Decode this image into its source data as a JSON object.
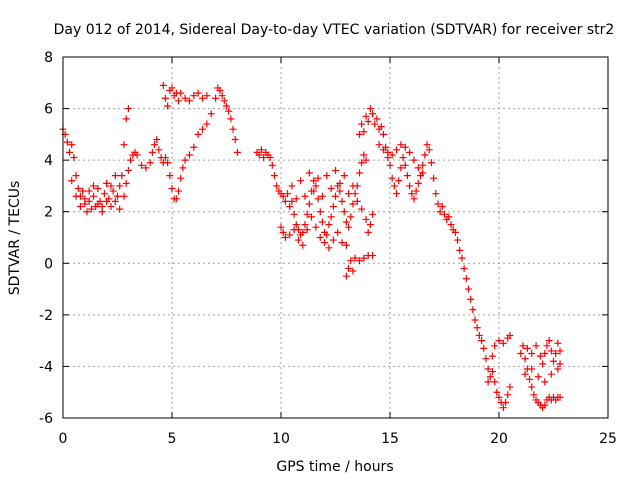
{
  "chart_data": {
    "type": "scatter",
    "title": "Day 012 of 2014, Sidereal Day-to-day VTEC variation (SDTVAR) for receiver str2",
    "xlabel": "GPS time / hours",
    "ylabel": "SDTVAR / TECUs",
    "xlim": [
      0,
      25
    ],
    "ylim": [
      -6,
      8
    ],
    "xticks": [
      0,
      5,
      10,
      15,
      20,
      25
    ],
    "yticks": [
      -6,
      -4,
      -2,
      0,
      2,
      4,
      6,
      8
    ],
    "grid": true,
    "marker": "plus",
    "color": "#ff0000",
    "series": [
      {
        "name": "str2",
        "points": [
          [
            0.0,
            5.2
          ],
          [
            0.1,
            5.0
          ],
          [
            0.2,
            4.7
          ],
          [
            0.3,
            4.3
          ],
          [
            0.4,
            4.6
          ],
          [
            0.5,
            4.1
          ],
          [
            0.6,
            3.4
          ],
          [
            0.7,
            2.9
          ],
          [
            0.8,
            2.6
          ],
          [
            0.9,
            2.8
          ],
          [
            1.0,
            2.3
          ],
          [
            1.1,
            2.0
          ],
          [
            1.2,
            2.4
          ],
          [
            1.3,
            2.1
          ],
          [
            1.4,
            2.6
          ],
          [
            1.5,
            2.2
          ],
          [
            1.6,
            2.9
          ],
          [
            1.7,
            2.4
          ],
          [
            1.8,
            2.2
          ],
          [
            1.9,
            2.7
          ],
          [
            2.0,
            3.1
          ],
          [
            2.1,
            2.5
          ],
          [
            2.2,
            2.2
          ],
          [
            2.3,
            2.8
          ],
          [
            2.4,
            3.4
          ],
          [
            2.5,
            2.6
          ],
          [
            2.6,
            2.1
          ],
          [
            2.7,
            3.4
          ],
          [
            2.8,
            4.6
          ],
          [
            2.9,
            5.6
          ],
          [
            3.0,
            6.0
          ],
          [
            0.4,
            3.2
          ],
          [
            0.6,
            2.6
          ],
          [
            0.8,
            2.2
          ],
          [
            1.0,
            2.5
          ],
          [
            1.2,
            2.8
          ],
          [
            1.4,
            3.0
          ],
          [
            1.6,
            2.3
          ],
          [
            1.8,
            2.0
          ],
          [
            2.0,
            2.4
          ],
          [
            2.2,
            3.0
          ],
          [
            2.4,
            2.4
          ],
          [
            2.6,
            3.0
          ],
          [
            2.8,
            2.6
          ],
          [
            2.9,
            3.1
          ],
          [
            3.0,
            3.6
          ],
          [
            3.1,
            4.0
          ],
          [
            3.2,
            4.2
          ],
          [
            3.3,
            4.3
          ],
          [
            3.4,
            4.2
          ],
          [
            3.6,
            3.8
          ],
          [
            3.8,
            3.7
          ],
          [
            4.0,
            3.9
          ],
          [
            4.1,
            4.3
          ],
          [
            4.2,
            4.6
          ],
          [
            4.3,
            4.8
          ],
          [
            4.4,
            4.4
          ],
          [
            4.5,
            4.1
          ],
          [
            4.6,
            3.9
          ],
          [
            4.7,
            4.1
          ],
          [
            4.8,
            3.9
          ],
          [
            4.9,
            3.4
          ],
          [
            5.0,
            2.9
          ],
          [
            5.1,
            2.5
          ],
          [
            5.2,
            2.5
          ],
          [
            5.3,
            2.8
          ],
          [
            5.4,
            3.3
          ],
          [
            5.5,
            3.7
          ],
          [
            5.6,
            4.0
          ],
          [
            5.8,
            4.2
          ],
          [
            6.0,
            4.5
          ],
          [
            6.2,
            5.0
          ],
          [
            6.4,
            5.2
          ],
          [
            6.6,
            5.4
          ],
          [
            6.8,
            5.8
          ],
          [
            7.0,
            6.4
          ],
          [
            7.1,
            6.8
          ],
          [
            7.2,
            6.7
          ],
          [
            7.3,
            6.5
          ],
          [
            7.4,
            6.3
          ],
          [
            7.5,
            6.1
          ],
          [
            7.6,
            5.9
          ],
          [
            7.7,
            5.6
          ],
          [
            7.8,
            5.2
          ],
          [
            7.9,
            4.8
          ],
          [
            8.0,
            4.3
          ],
          [
            4.6,
            6.9
          ],
          [
            4.7,
            6.4
          ],
          [
            4.8,
            6.1
          ],
          [
            4.9,
            6.7
          ],
          [
            5.0,
            6.8
          ],
          [
            5.1,
            6.5
          ],
          [
            5.2,
            6.6
          ],
          [
            5.3,
            6.3
          ],
          [
            5.4,
            6.6
          ],
          [
            5.6,
            6.4
          ],
          [
            5.8,
            6.3
          ],
          [
            6.0,
            6.5
          ],
          [
            6.2,
            6.6
          ],
          [
            6.4,
            6.4
          ],
          [
            6.6,
            6.5
          ],
          [
            8.9,
            4.3
          ],
          [
            9.0,
            4.2
          ],
          [
            9.1,
            4.4
          ],
          [
            9.2,
            4.1
          ],
          [
            9.3,
            4.3
          ],
          [
            9.4,
            4.2
          ],
          [
            9.5,
            4.1
          ],
          [
            9.6,
            3.8
          ],
          [
            9.7,
            3.4
          ],
          [
            9.8,
            3.0
          ],
          [
            9.9,
            2.8
          ],
          [
            10.0,
            2.7
          ],
          [
            10.1,
            2.6
          ],
          [
            10.2,
            2.4
          ],
          [
            10.3,
            2.7
          ],
          [
            10.4,
            2.2
          ],
          [
            10.5,
            2.4
          ],
          [
            10.6,
            1.9
          ],
          [
            10.7,
            1.5
          ],
          [
            10.8,
            1.3
          ],
          [
            10.9,
            1.1
          ],
          [
            11.0,
            1.2
          ],
          [
            11.1,
            1.5
          ],
          [
            11.2,
            1.9
          ],
          [
            11.3,
            2.3
          ],
          [
            11.4,
            2.8
          ],
          [
            11.5,
            3.2
          ],
          [
            11.6,
            3.0
          ],
          [
            11.7,
            2.5
          ],
          [
            11.8,
            2.0
          ],
          [
            11.9,
            1.6
          ],
          [
            12.0,
            1.2
          ],
          [
            12.1,
            1.1
          ],
          [
            12.2,
            1.5
          ],
          [
            12.3,
            1.8
          ],
          [
            12.4,
            2.2
          ],
          [
            12.5,
            2.6
          ],
          [
            12.6,
            3.0
          ],
          [
            12.7,
            2.8
          ],
          [
            12.8,
            2.4
          ],
          [
            12.9,
            2.0
          ],
          [
            13.0,
            1.6
          ],
          [
            13.1,
            1.4
          ],
          [
            13.2,
            1.8
          ],
          [
            13.3,
            2.3
          ],
          [
            13.4,
            2.7
          ],
          [
            13.5,
            3.0
          ],
          [
            13.6,
            3.5
          ],
          [
            13.7,
            3.9
          ],
          [
            13.8,
            4.2
          ],
          [
            13.9,
            4.0
          ],
          [
            10.0,
            1.4
          ],
          [
            10.1,
            1.2
          ],
          [
            10.2,
            1.0
          ],
          [
            10.4,
            1.1
          ],
          [
            10.6,
            1.3
          ],
          [
            10.8,
            0.9
          ],
          [
            11.0,
            0.7
          ],
          [
            11.2,
            1.3
          ],
          [
            11.4,
            1.8
          ],
          [
            11.6,
            1.4
          ],
          [
            11.8,
            1.0
          ],
          [
            12.0,
            0.8
          ],
          [
            12.2,
            0.6
          ],
          [
            12.4,
            0.9
          ],
          [
            12.6,
            1.2
          ],
          [
            12.8,
            0.8
          ],
          [
            13.0,
            0.7
          ],
          [
            10.5,
            3.0
          ],
          [
            10.7,
            2.5
          ],
          [
            10.9,
            3.2
          ],
          [
            11.1,
            2.6
          ],
          [
            11.3,
            3.5
          ],
          [
            11.5,
            2.8
          ],
          [
            11.7,
            3.3
          ],
          [
            11.9,
            2.6
          ],
          [
            12.1,
            3.4
          ],
          [
            12.3,
            2.9
          ],
          [
            12.5,
            3.6
          ],
          [
            12.7,
            3.1
          ],
          [
            12.9,
            3.4
          ],
          [
            13.1,
            2.7
          ],
          [
            13.3,
            3.0
          ],
          [
            13.5,
            2.4
          ],
          [
            13.7,
            2.1
          ],
          [
            13.9,
            1.7
          ],
          [
            14.0,
            1.2
          ],
          [
            14.1,
            1.5
          ],
          [
            14.2,
            1.9
          ],
          [
            13.0,
            -0.5
          ],
          [
            13.1,
            -0.2
          ],
          [
            13.2,
            0.1
          ],
          [
            13.4,
            0.2
          ],
          [
            13.6,
            0.1
          ],
          [
            13.8,
            0.2
          ],
          [
            14.0,
            0.3
          ],
          [
            14.2,
            0.3
          ],
          [
            13.3,
            -0.3
          ],
          [
            13.6,
            5.0
          ],
          [
            13.7,
            5.4
          ],
          [
            13.8,
            5.1
          ],
          [
            13.9,
            5.7
          ],
          [
            14.0,
            5.5
          ],
          [
            14.1,
            6.0
          ],
          [
            14.2,
            5.8
          ],
          [
            14.3,
            5.4
          ],
          [
            14.4,
            5.6
          ],
          [
            14.5,
            5.2
          ],
          [
            14.6,
            5.3
          ],
          [
            14.7,
            5.0
          ],
          [
            14.8,
            4.5
          ],
          [
            14.9,
            4.1
          ],
          [
            15.0,
            3.8
          ],
          [
            15.1,
            3.3
          ],
          [
            15.2,
            3.0
          ],
          [
            15.3,
            2.7
          ],
          [
            15.4,
            3.2
          ],
          [
            15.5,
            3.7
          ],
          [
            15.6,
            4.1
          ],
          [
            15.7,
            3.8
          ],
          [
            15.8,
            3.4
          ],
          [
            15.9,
            3.0
          ],
          [
            16.0,
            2.7
          ],
          [
            16.1,
            2.5
          ],
          [
            16.2,
            2.8
          ],
          [
            16.3,
            3.1
          ],
          [
            16.4,
            3.4
          ],
          [
            16.5,
            3.8
          ],
          [
            16.6,
            4.2
          ],
          [
            16.7,
            4.6
          ],
          [
            16.8,
            4.4
          ],
          [
            16.9,
            3.9
          ],
          [
            17.0,
            3.3
          ],
          [
            14.5,
            4.6
          ],
          [
            14.7,
            4.4
          ],
          [
            14.9,
            4.3
          ],
          [
            15.1,
            4.2
          ],
          [
            15.3,
            4.4
          ],
          [
            15.5,
            4.6
          ],
          [
            15.7,
            4.5
          ],
          [
            15.9,
            4.3
          ],
          [
            16.1,
            4.0
          ],
          [
            16.3,
            3.7
          ],
          [
            16.5,
            3.5
          ],
          [
            17.1,
            2.7
          ],
          [
            17.2,
            2.3
          ],
          [
            17.3,
            2.0
          ],
          [
            17.4,
            2.2
          ],
          [
            17.5,
            1.9
          ],
          [
            17.6,
            1.7
          ],
          [
            17.7,
            1.8
          ],
          [
            17.8,
            1.5
          ],
          [
            17.9,
            1.3
          ],
          [
            18.0,
            1.2
          ],
          [
            18.1,
            0.9
          ],
          [
            18.2,
            0.5
          ],
          [
            18.3,
            0.2
          ],
          [
            18.4,
            -0.2
          ],
          [
            18.5,
            -0.6
          ],
          [
            18.6,
            -1.0
          ],
          [
            18.7,
            -1.4
          ],
          [
            18.8,
            -1.8
          ],
          [
            18.9,
            -2.2
          ],
          [
            19.0,
            -2.5
          ],
          [
            19.1,
            -2.8
          ],
          [
            19.2,
            -3.0
          ],
          [
            19.3,
            -3.3
          ],
          [
            19.4,
            -3.7
          ],
          [
            19.5,
            -4.1
          ],
          [
            19.6,
            -4.4
          ],
          [
            19.7,
            -4.2
          ],
          [
            19.8,
            -4.6
          ],
          [
            19.9,
            -5.0
          ],
          [
            20.0,
            -5.2
          ],
          [
            20.1,
            -5.4
          ],
          [
            20.2,
            -5.6
          ],
          [
            20.3,
            -5.4
          ],
          [
            20.4,
            -5.1
          ],
          [
            20.5,
            -4.8
          ],
          [
            19.8,
            -3.2
          ],
          [
            20.0,
            -3.0
          ],
          [
            20.2,
            -3.1
          ],
          [
            20.4,
            -2.9
          ],
          [
            20.5,
            -2.8
          ],
          [
            19.5,
            -4.6
          ],
          [
            19.7,
            -3.6
          ],
          [
            21.0,
            -3.5
          ],
          [
            21.1,
            -3.2
          ],
          [
            21.2,
            -3.7
          ],
          [
            21.3,
            -4.1
          ],
          [
            21.4,
            -4.5
          ],
          [
            21.5,
            -4.8
          ],
          [
            21.6,
            -5.1
          ],
          [
            21.7,
            -5.3
          ],
          [
            21.8,
            -5.4
          ],
          [
            21.9,
            -5.5
          ],
          [
            22.0,
            -5.6
          ],
          [
            22.1,
            -5.5
          ],
          [
            22.2,
            -5.3
          ],
          [
            22.3,
            -5.2
          ],
          [
            22.4,
            -5.3
          ],
          [
            22.5,
            -5.2
          ],
          [
            22.6,
            -5.3
          ],
          [
            22.7,
            -5.2
          ],
          [
            22.8,
            -5.2
          ],
          [
            21.3,
            -3.3
          ],
          [
            21.5,
            -3.5
          ],
          [
            21.7,
            -3.2
          ],
          [
            21.9,
            -3.6
          ],
          [
            22.0,
            -3.9
          ],
          [
            22.1,
            -3.5
          ],
          [
            22.2,
            -3.2
          ],
          [
            22.3,
            -3.0
          ],
          [
            22.4,
            -3.4
          ],
          [
            22.5,
            -3.8
          ],
          [
            22.6,
            -3.5
          ],
          [
            22.7,
            -3.1
          ],
          [
            22.8,
            -3.4
          ],
          [
            21.2,
            -4.3
          ],
          [
            21.5,
            -4.1
          ],
          [
            21.8,
            -4.4
          ],
          [
            22.1,
            -4.6
          ],
          [
            22.4,
            -4.3
          ],
          [
            22.7,
            -4.1
          ],
          [
            22.8,
            -3.9
          ]
        ]
      }
    ]
  }
}
